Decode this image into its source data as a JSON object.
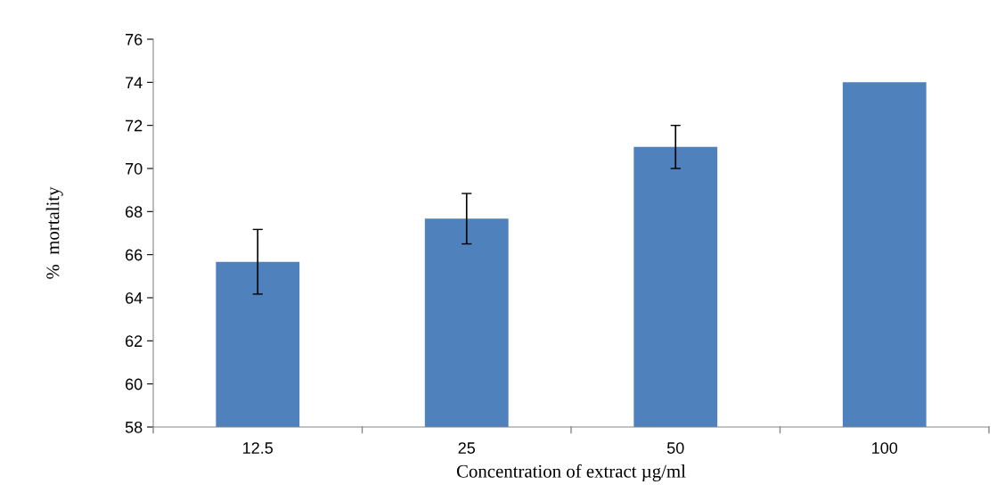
{
  "chart_data": {
    "type": "bar",
    "xlabel": "Concentration of extract µg/ml",
    "ylabel": "%  mortality",
    "categories": [
      "12.5",
      "25",
      "50",
      "100"
    ],
    "values": [
      65.67,
      67.67,
      71,
      74
    ],
    "errors": [
      1.5,
      1.17,
      1,
      null
    ],
    "color": "#4f81bd",
    "ylim": [
      58,
      76
    ],
    "yticks": [
      58,
      60,
      62,
      64,
      66,
      68,
      70,
      72,
      74,
      76
    ],
    "grid": false
  }
}
